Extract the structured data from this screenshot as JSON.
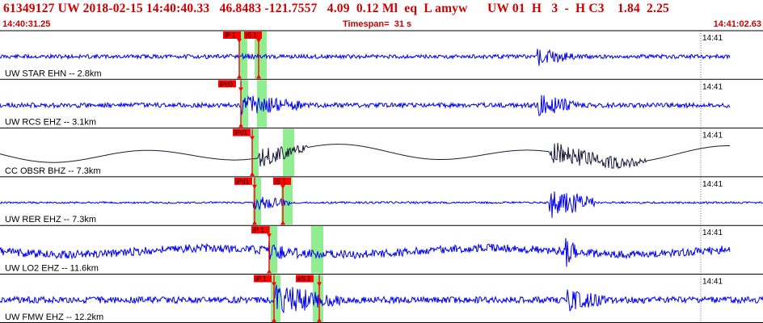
{
  "header": {
    "event_line": "61349127 UW 2018-02-15 14:40:40.33   46.8483 -121.7557   4.09  0.12 Ml  eq  L amyw      UW 01  H   3  -  H C3    1.84  2.25",
    "start_time": "14:40:31.25",
    "timespan_label": "Timespan=",
    "timespan_value": "31 s",
    "end_time": "14:41:02.63"
  },
  "colors": {
    "header_text": "#cc0000",
    "trace_blue": "#0000ee",
    "trace_broadband": "#1a1a3a",
    "pick_green": "#90ee90",
    "pick_red": "#ff0000",
    "grid": "#000000"
  },
  "minute_label": "14:41",
  "channels": [
    {
      "label": "UW STAR EHN -- 2.8km",
      "trace": "blue",
      "picks": [
        {
          "text": "iP 1",
          "kind": "P"
        },
        {
          "text": "iS 1",
          "kind": "S"
        }
      ]
    },
    {
      "label": "UW RCS EHZ -- 3.1km",
      "trace": "blue",
      "picks": [
        {
          "text": "iPd0",
          "kind": "P"
        }
      ]
    },
    {
      "label": "CC OBSR BHZ -- 7.3km",
      "trace": "broadband",
      "picks": [
        {
          "text": "iPd1",
          "kind": "P"
        }
      ]
    },
    {
      "label": "UW RER EHZ -- 7.3km",
      "trace": "blue",
      "picks": [
        {
          "text": "iPd1",
          "kind": "P"
        },
        {
          "text": "iS 1",
          "kind": "S"
        }
      ]
    },
    {
      "label": "UW LO2 EHZ -- 11.6km",
      "trace": "blue",
      "picks": [
        {
          "text": "iP 1",
          "kind": "P"
        }
      ]
    },
    {
      "label": "UW FMW EHZ -- 12.2km",
      "trace": "blue",
      "picks": [
        {
          "text": "iP 1",
          "kind": "P"
        },
        {
          "text": "eS 2",
          "kind": "S"
        }
      ]
    }
  ]
}
